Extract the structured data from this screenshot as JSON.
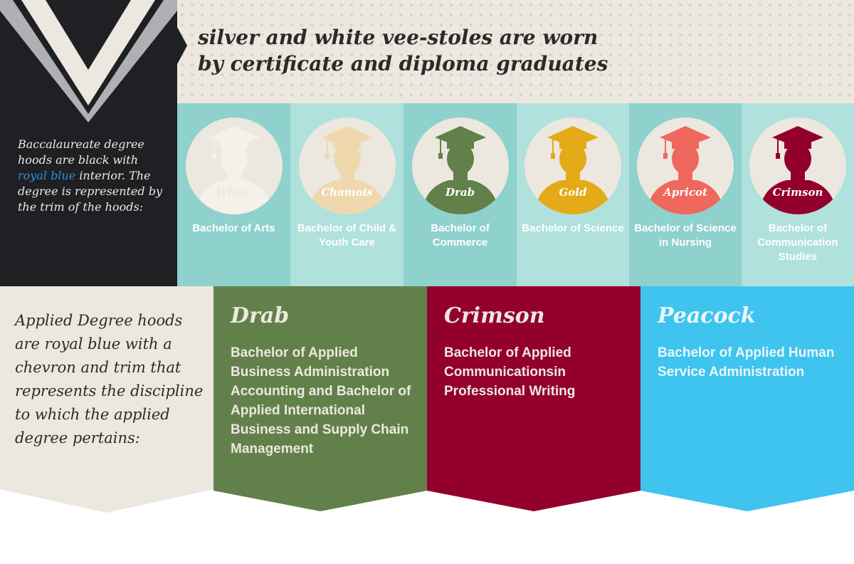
{
  "colors": {
    "panel_black": "#1e2023",
    "banner_cream": "#ece8df",
    "teal_dark": "#8fd1cc",
    "teal_light": "#b0e1dc",
    "royal_blue": "#2f8fd6",
    "drab": "#62814a",
    "crimson": "#94002e",
    "peacock": "#3ec4ee"
  },
  "header": {
    "line1": "silver and white vee-stoles are worn",
    "line2": "by certificate and diploma graduates"
  },
  "baccalaureate": {
    "before": "Baccalaureate degree hoods are black with ",
    "royal_blue": "royal blue",
    "after": " interior. The degree is represented by the trim of the hoods:",
    "hoods": [
      {
        "color_name": "White",
        "color": "#f4f1ea",
        "degree": "Bachelor of Arts",
        "icon": "graduate-icon"
      },
      {
        "color_name": "Chamois",
        "color": "#efd8ad",
        "degree": "Bachelor of Child & Youth Care",
        "icon": "graduate-icon"
      },
      {
        "color_name": "Drab",
        "color": "#62814a",
        "degree": "Bachelor of Commerce",
        "icon": "graduate-icon"
      },
      {
        "color_name": "Gold",
        "color": "#e4aa17",
        "degree": "Bachelor of Science",
        "icon": "graduate-icon"
      },
      {
        "color_name": "Apricot",
        "color": "#f0675d",
        "degree": "Bachelor of Science in Nursing",
        "icon": "graduate-icon"
      },
      {
        "color_name": "Crimson",
        "color": "#94002e",
        "degree": "Bachelor of Communication Studies",
        "icon": "graduate-icon"
      }
    ]
  },
  "applied": {
    "intro": "Applied Degree hoods are royal blue with a chevron and trim that represents the discipline to which the applied degree pertains:",
    "ribbons": [
      {
        "title": "Drab",
        "text": "Bachelor of Applied Business Administration Accounting and Bachelor of Applied International Business and Supply Chain Management"
      },
      {
        "title": "Crimson",
        "text": "Bachelor of Applied Communicationsin Professional Writing"
      },
      {
        "title": "Peacock",
        "text": "Bachelor of Applied Human Service Administration"
      }
    ]
  }
}
